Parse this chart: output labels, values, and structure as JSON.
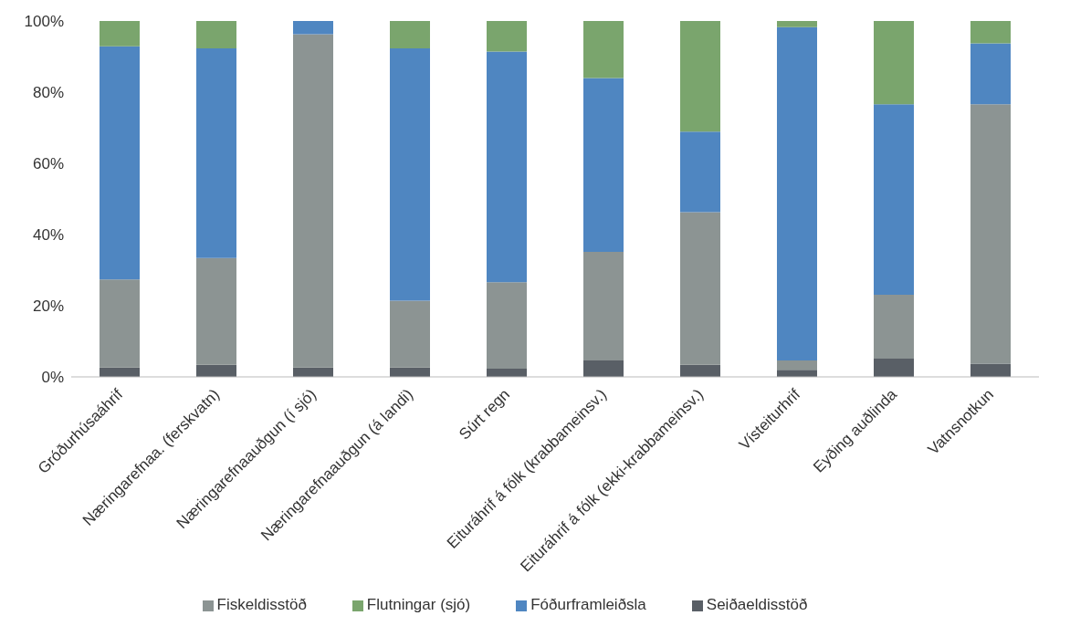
{
  "chart_data": {
    "type": "bar",
    "stacked": true,
    "categories": [
      "Gróðurhúsaáhrif",
      "Næringarefnaa. (ferskvatn)",
      "Næringarefnaauðgun (í sjó)",
      "Næringarefnaauðgun (á landi)",
      "Súrt regn",
      "Eituráhrif á fólk (krabbameinsv.)",
      "Eituráhrif á fólk (ekki-krabbameinsv.)",
      "Vísteiturhrif",
      "Eyðing auðlinda",
      "Vatnsnotkun"
    ],
    "series": [
      {
        "name": "Seiðaeldisstöð",
        "color": "#595f66",
        "values": [
          2.6,
          3.4,
          2.6,
          2.6,
          2.3,
          4.6,
          3.4,
          2.0,
          5.1,
          3.7
        ]
      },
      {
        "name": "Fiskeldisstöð",
        "color": "#8c9493",
        "values": [
          24.8,
          30.0,
          93.7,
          18.8,
          24.3,
          30.5,
          42.9,
          2.6,
          18.0,
          72.9
        ]
      },
      {
        "name": "Fóðurframleiðsla",
        "color": "#4f86c1",
        "values": [
          65.5,
          58.9,
          3.7,
          70.9,
          64.8,
          48.9,
          22.6,
          93.7,
          53.5,
          17.1
        ]
      },
      {
        "name": "Flutningar (sjó)",
        "color": "#7aa56d",
        "values": [
          7.1,
          7.7,
          0,
          7.7,
          8.6,
          16.0,
          31.1,
          1.7,
          23.4,
          6.3
        ]
      }
    ],
    "ylim": [
      0,
      100
    ],
    "yticks": [
      {
        "value": 0,
        "label": "0%"
      },
      {
        "value": 20,
        "label": "20%"
      },
      {
        "value": 40,
        "label": "40%"
      },
      {
        "value": 60,
        "label": "60%"
      },
      {
        "value": 80,
        "label": "80%"
      },
      {
        "value": 100,
        "label": "100%"
      }
    ],
    "legend": "bottom"
  }
}
